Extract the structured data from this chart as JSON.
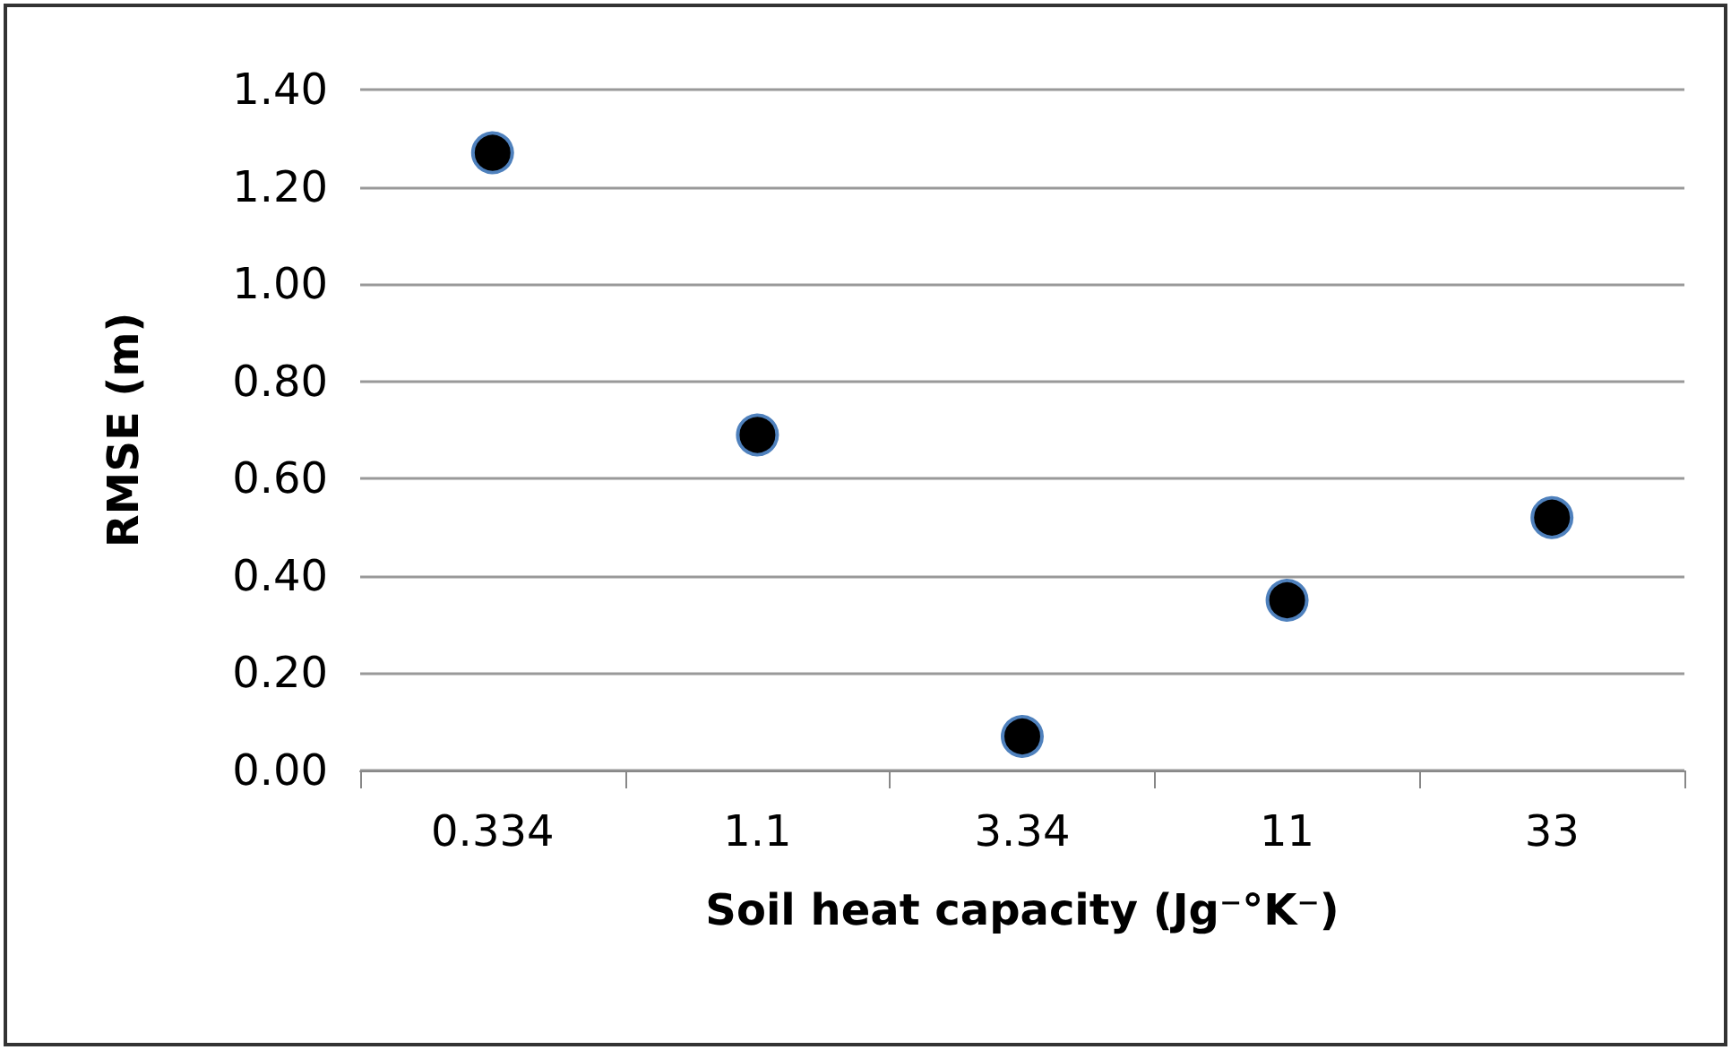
{
  "chart_data": {
    "type": "scatter",
    "xlabel": "Soil heat capacity (Jg⁻°K⁻)",
    "ylabel": "RMSE (m)",
    "categories": [
      "0.334",
      "1.1",
      "3.34",
      "11",
      "33"
    ],
    "series": [
      {
        "color": "#000000",
        "values": [
          1.27,
          0.69,
          0.07,
          0.35,
          0.52
        ]
      }
    ],
    "ylim": [
      0,
      1.4
    ],
    "yticks": [
      {
        "value": 0,
        "label": "0.00"
      },
      {
        "value": 0.2,
        "label": "0.20"
      },
      {
        "value": 0.4,
        "label": "0.40"
      },
      {
        "value": 0.6,
        "label": "0.60"
      },
      {
        "value": 0.8,
        "label": "0.80"
      },
      {
        "value": 1,
        "label": "1.00"
      },
      {
        "value": 1.2,
        "label": "1.20"
      },
      {
        "value": 1.4,
        "label": "1.40"
      }
    ],
    "grid": "y",
    "marker": "circle"
  }
}
